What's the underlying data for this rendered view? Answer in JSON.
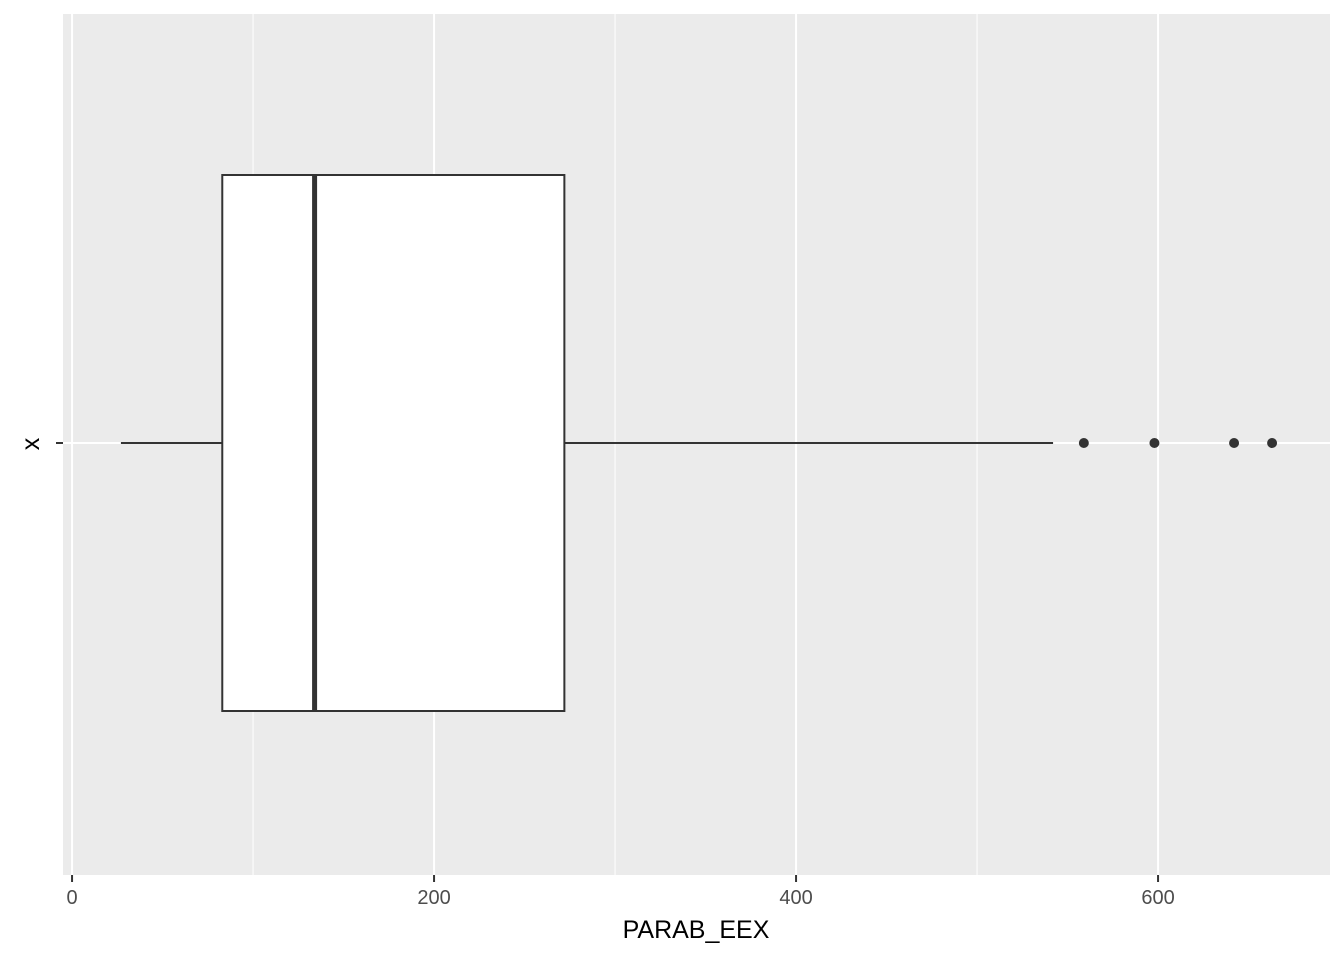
{
  "chart_data": {
    "type": "boxplot",
    "orientation": "horizontal",
    "xlabel": "PARAB_EEX",
    "ylabel": "x",
    "xlim": [
      -5,
      695
    ],
    "x_ticks": [
      0,
      200,
      400,
      600
    ],
    "x_tick_labels": [
      "0",
      "200",
      "400",
      "600"
    ],
    "y_categories": [
      "-"
    ],
    "grid": true,
    "colors": {
      "panel": "#ebebeb",
      "grid": "#ffffff",
      "box_fill": "#ffffff",
      "box_line": "#333333"
    },
    "box": {
      "whisker_low": 27,
      "q1": 83,
      "median": 134,
      "q3": 272,
      "whisker_high": 542,
      "outliers": [
        559,
        598,
        642,
        663
      ]
    }
  }
}
